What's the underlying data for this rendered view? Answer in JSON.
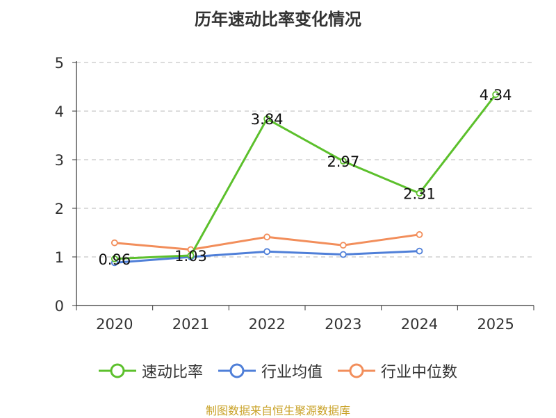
{
  "chart_data": {
    "type": "line",
    "title": "历年速动比率变化情况",
    "categories": [
      "2020",
      "2021",
      "2022",
      "2023",
      "2024",
      "2025"
    ],
    "ylim": [
      0,
      5
    ],
    "yticks": [
      "0",
      "1",
      "2",
      "3",
      "4",
      "5"
    ],
    "grid": true,
    "legend_position": "bottom",
    "series": [
      {
        "name": "速动比率",
        "color": "#5cc02c",
        "values": [
          0.96,
          1.03,
          3.84,
          2.97,
          2.31,
          4.34
        ],
        "labels": [
          "0.96",
          "1.03",
          "3.84",
          "2.97",
          "2.31",
          "4.34"
        ]
      },
      {
        "name": "行业均值",
        "color": "#4f7fd8",
        "values": [
          0.88,
          1.0,
          1.11,
          1.05,
          1.12,
          null
        ]
      },
      {
        "name": "行业中位数",
        "color": "#f28e5b",
        "values": [
          1.29,
          1.15,
          1.41,
          1.24,
          1.46,
          null
        ]
      }
    ]
  },
  "footer": {
    "source": "制图数据来自恒生聚源数据库"
  }
}
